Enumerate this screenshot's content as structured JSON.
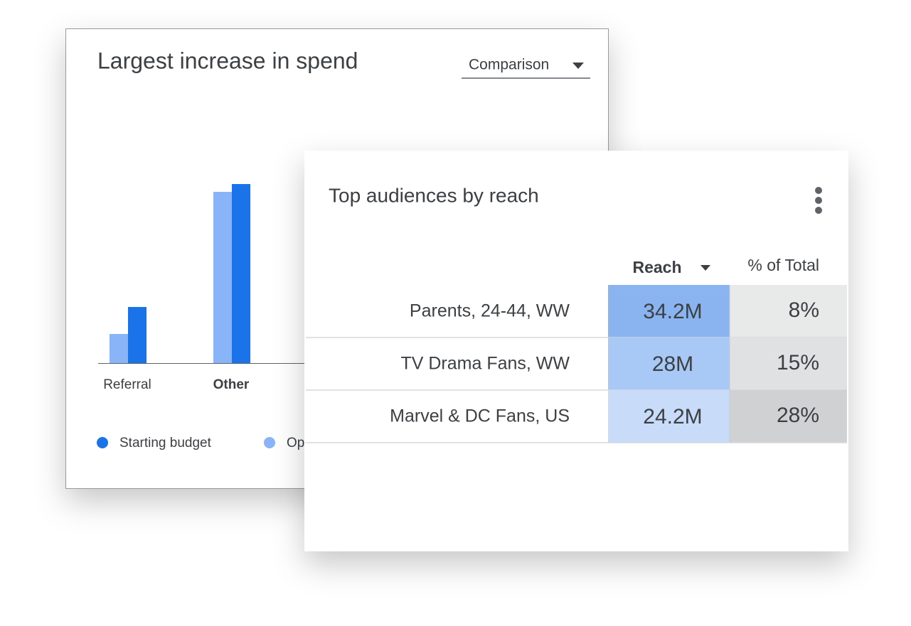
{
  "chart_data": {
    "type": "bar",
    "title": "Largest increase in spend",
    "categories": [
      "Referral",
      "Other"
    ],
    "series": [
      {
        "name": "Starting budget",
        "color": "#1a73e8",
        "values": [
          79,
          252
        ]
      },
      {
        "name": "Op",
        "color": "#8ab4f8",
        "values": [
          41,
          241
        ]
      }
    ]
  },
  "dropdown": "Comparison",
  "table_card": {
    "title": "Top audiences by reach",
    "table": {
      "header": [
        "Reach",
        "% of Total"
      ],
      "rows": [
        [
          "Parents, 24-44, WW",
          "34.2M",
          "8%"
        ],
        [
          "TV Drama Fans, WW",
          "28M",
          "15%"
        ],
        [
          "Marvel & DC Fans, US",
          "24.2M",
          "28%"
        ]
      ]
    }
  }
}
